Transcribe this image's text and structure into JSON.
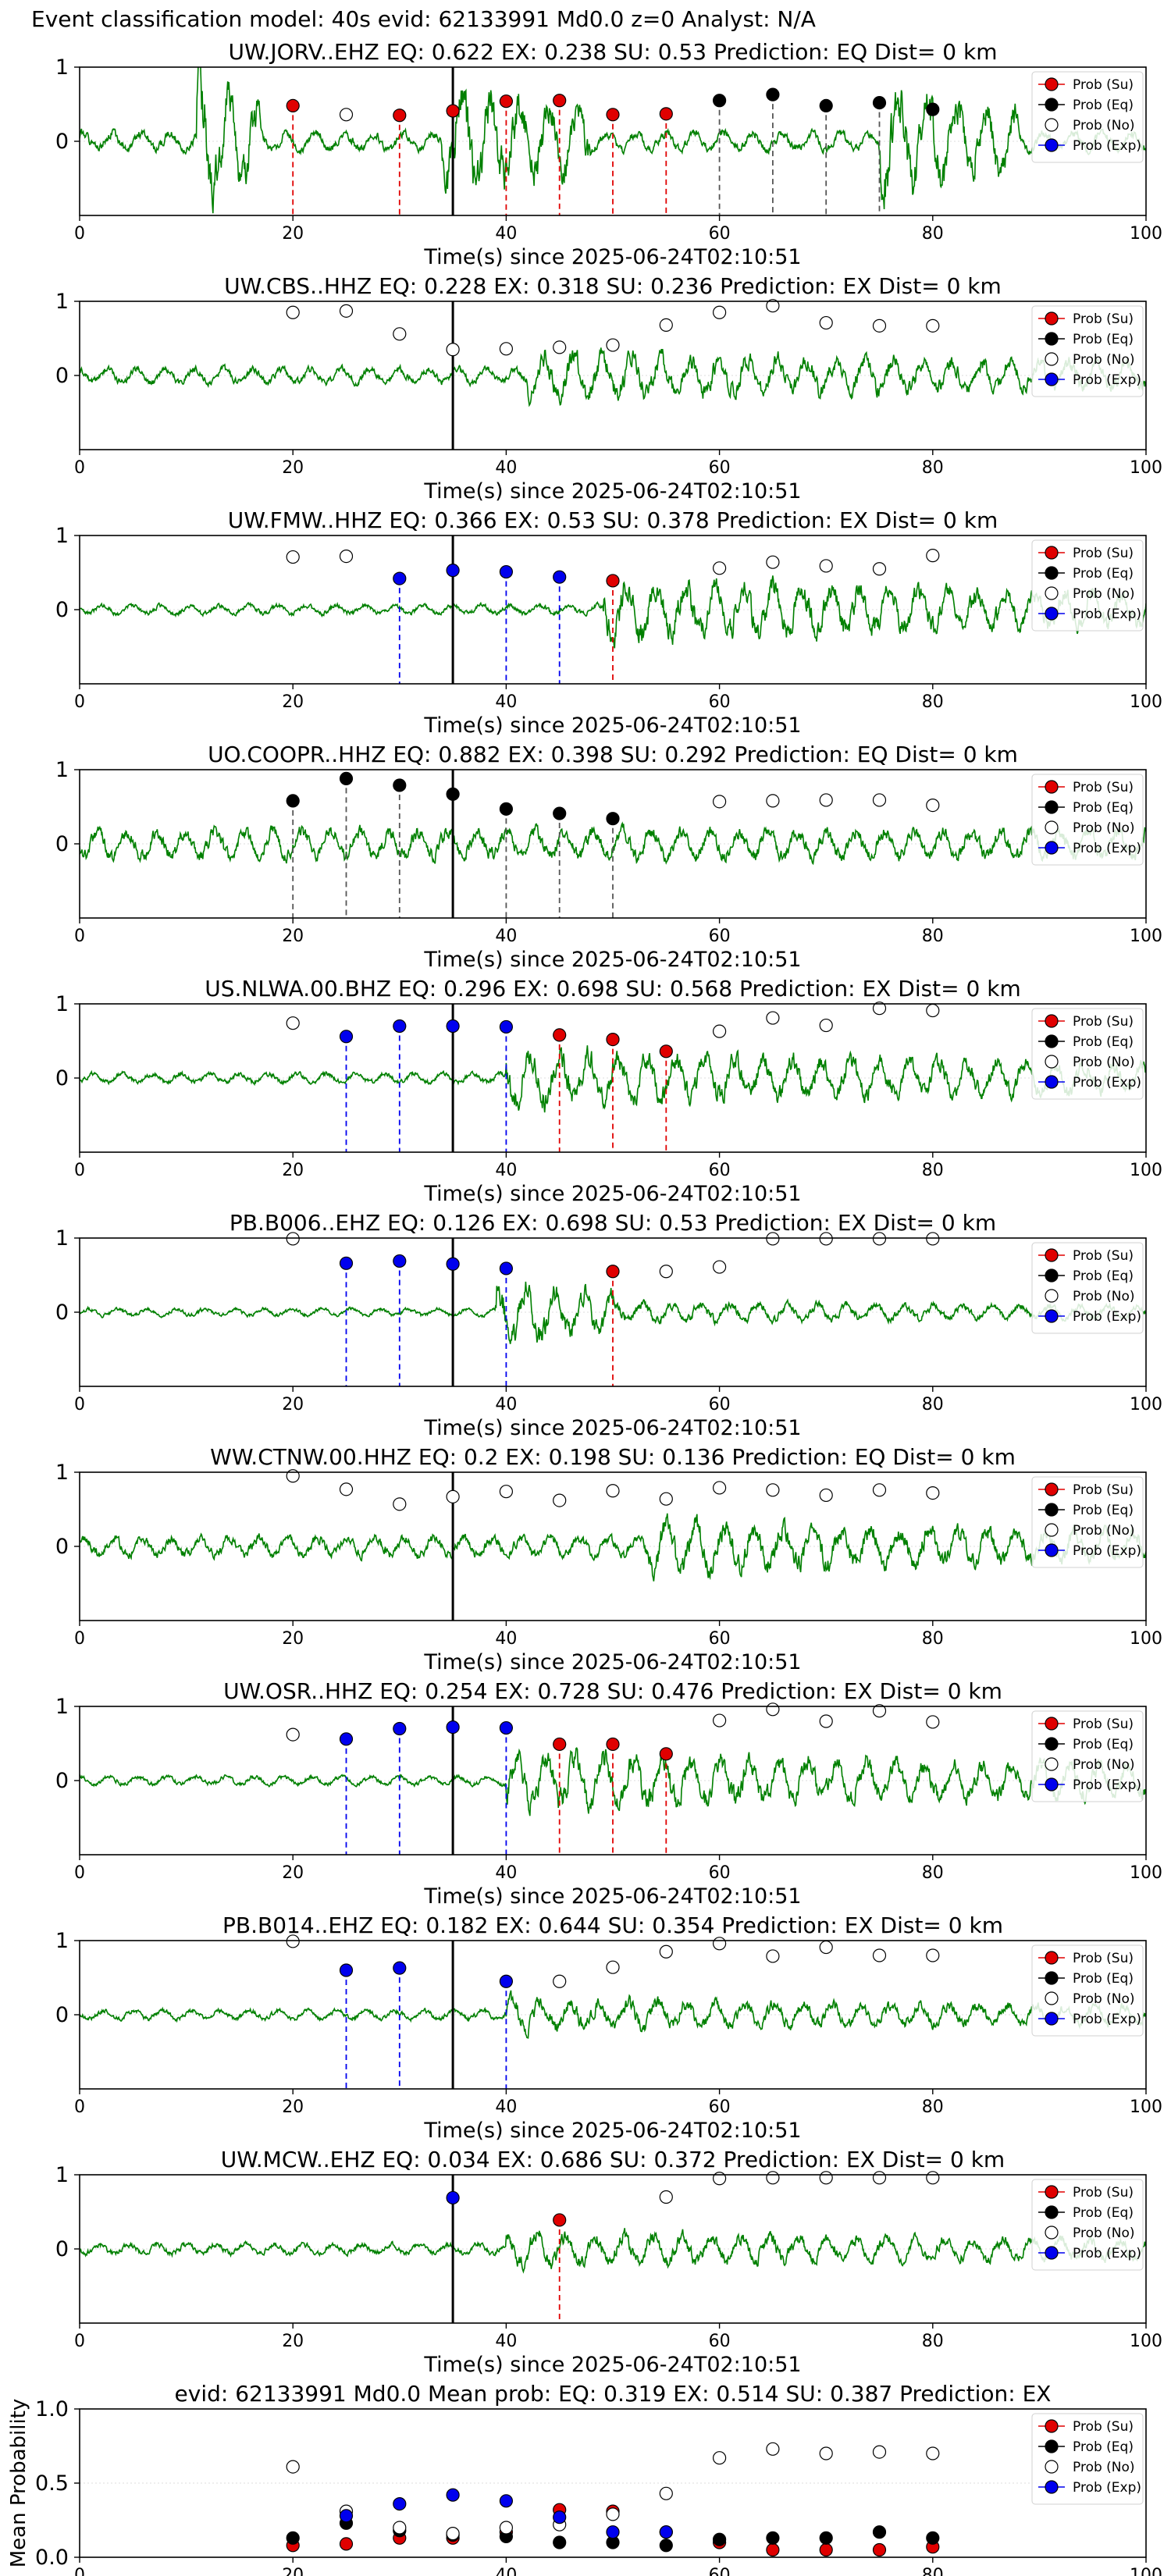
{
  "suptitle": "Event classification model: 40s evid: 62133991 Md0.0 z=0 Analyst: N/A",
  "legend": [
    "Prob (Su)",
    "Prob (Eq)",
    "Prob (No)",
    "Prob (Exp)"
  ],
  "colors": {
    "su": "#e00000",
    "eq": "#000000",
    "no": "#ffffff",
    "exp": "#0000ee",
    "trace": "#008000"
  },
  "xlabel": "Time(s) since 2025-06-24T02:10:51",
  "xticks": [
    "0",
    "20",
    "40",
    "60",
    "80",
    "100"
  ],
  "yticks": [
    "0",
    "1"
  ],
  "chart_data": [
    {
      "type": "line",
      "title": "UW.JORV..EHZ   EQ: 0.622  EX: 0.238  SU: 0.53   Prediction: EQ    Dist= 0 km",
      "seed": 1,
      "noise": 0.85,
      "bursts": [
        [
          11,
          17,
          6.0
        ],
        [
          34,
          48,
          5.0
        ],
        [
          75,
          88,
          5.0
        ]
      ],
      "xlim": [
        0,
        100
      ],
      "ylim": [
        -1,
        1
      ],
      "pick": 35,
      "vlines": [
        {
          "t": 20,
          "c": "su"
        },
        {
          "t": 30,
          "c": "su"
        },
        {
          "t": 35,
          "c": "su"
        },
        {
          "t": 40,
          "c": "su"
        },
        {
          "t": 45,
          "c": "su"
        },
        {
          "t": 50,
          "c": "su"
        },
        {
          "t": 55,
          "c": "su"
        },
        {
          "t": 60,
          "c": "eq"
        },
        {
          "t": 65,
          "c": "eq"
        },
        {
          "t": 70,
          "c": "eq"
        },
        {
          "t": 75,
          "c": "eq"
        }
      ],
      "points": [
        {
          "t": 20,
          "v": 0.48,
          "c": "su"
        },
        {
          "t": 25,
          "v": 0.36,
          "c": "no"
        },
        {
          "t": 30,
          "v": 0.35,
          "c": "su"
        },
        {
          "t": 35,
          "v": 0.41,
          "c": "su"
        },
        {
          "t": 40,
          "v": 0.54,
          "c": "su"
        },
        {
          "t": 45,
          "v": 0.55,
          "c": "su"
        },
        {
          "t": 50,
          "v": 0.36,
          "c": "su"
        },
        {
          "t": 55,
          "v": 0.37,
          "c": "su"
        },
        {
          "t": 60,
          "v": 0.55,
          "c": "eq"
        },
        {
          "t": 65,
          "v": 0.63,
          "c": "eq"
        },
        {
          "t": 70,
          "v": 0.48,
          "c": "eq"
        },
        {
          "t": 75,
          "v": 0.52,
          "c": "eq"
        },
        {
          "t": 80,
          "v": 0.43,
          "c": "eq"
        }
      ]
    },
    {
      "type": "line",
      "title": "UW.CBS..HHZ   EQ: 0.228  EX: 0.318  SU: 0.236   Prediction: EX    Dist= 0 km",
      "seed": 2,
      "noise": 0.7,
      "bursts": [
        [
          42,
          100,
          2.2
        ]
      ],
      "xlim": [
        0,
        100
      ],
      "ylim": [
        -1,
        1
      ],
      "pick": 35,
      "vlines": [],
      "points": [
        {
          "t": 20,
          "v": 0.85,
          "c": "no"
        },
        {
          "t": 25,
          "v": 0.87,
          "c": "no"
        },
        {
          "t": 30,
          "v": 0.56,
          "c": "no"
        },
        {
          "t": 35,
          "v": 0.35,
          "c": "no"
        },
        {
          "t": 40,
          "v": 0.36,
          "c": "no"
        },
        {
          "t": 45,
          "v": 0.38,
          "c": "no"
        },
        {
          "t": 50,
          "v": 0.41,
          "c": "no"
        },
        {
          "t": 55,
          "v": 0.68,
          "c": "no"
        },
        {
          "t": 60,
          "v": 0.85,
          "c": "no"
        },
        {
          "t": 65,
          "v": 0.94,
          "c": "no"
        },
        {
          "t": 70,
          "v": 0.71,
          "c": "no"
        },
        {
          "t": 75,
          "v": 0.67,
          "c": "no"
        },
        {
          "t": 80,
          "v": 0.67,
          "c": "no"
        }
      ]
    },
    {
      "type": "line",
      "title": "UW.FMW..HHZ   EQ: 0.366  EX: 0.53  SU: 0.378   Prediction: EX    Dist= 0 km",
      "seed": 3,
      "noise": 0.45,
      "bursts": [
        [
          49,
          100,
          2.8
        ]
      ],
      "xlim": [
        0,
        100
      ],
      "ylim": [
        -1,
        1
      ],
      "pick": 35,
      "vlines": [
        {
          "t": 30,
          "c": "exp"
        },
        {
          "t": 40,
          "c": "exp"
        },
        {
          "t": 45,
          "c": "exp"
        },
        {
          "t": 50,
          "c": "su"
        }
      ],
      "points": [
        {
          "t": 20,
          "v": 0.71,
          "c": "no"
        },
        {
          "t": 25,
          "v": 0.72,
          "c": "no"
        },
        {
          "t": 30,
          "v": 0.42,
          "c": "exp"
        },
        {
          "t": 35,
          "v": 0.53,
          "c": "exp"
        },
        {
          "t": 40,
          "v": 0.51,
          "c": "exp"
        },
        {
          "t": 45,
          "v": 0.44,
          "c": "exp"
        },
        {
          "t": 50,
          "v": 0.39,
          "c": "su"
        },
        {
          "t": 60,
          "v": 0.56,
          "c": "no"
        },
        {
          "t": 65,
          "v": 0.64,
          "c": "no"
        },
        {
          "t": 70,
          "v": 0.59,
          "c": "no"
        },
        {
          "t": 75,
          "v": 0.55,
          "c": "no"
        },
        {
          "t": 80,
          "v": 0.73,
          "c": "no"
        }
      ]
    },
    {
      "type": "line",
      "title": "UO.COOPR..HHZ   EQ: 0.882  EX: 0.398  SU: 0.292   Prediction: EQ    Dist= 0 km",
      "seed": 4,
      "noise": 1.3,
      "bursts": [
        [
          50,
          65,
          1.6
        ]
      ],
      "xlim": [
        0,
        100
      ],
      "ylim": [
        -1,
        1
      ],
      "pick": 35,
      "vlines": [
        {
          "t": 20,
          "c": "eq"
        },
        {
          "t": 25,
          "c": "eq"
        },
        {
          "t": 30,
          "c": "eq"
        },
        {
          "t": 40,
          "c": "eq"
        },
        {
          "t": 45,
          "c": "eq"
        },
        {
          "t": 50,
          "c": "eq"
        }
      ],
      "points": [
        {
          "t": 20,
          "v": 0.58,
          "c": "eq"
        },
        {
          "t": 25,
          "v": 0.88,
          "c": "eq"
        },
        {
          "t": 30,
          "v": 0.79,
          "c": "eq"
        },
        {
          "t": 35,
          "v": 0.67,
          "c": "eq"
        },
        {
          "t": 40,
          "v": 0.47,
          "c": "eq"
        },
        {
          "t": 45,
          "v": 0.41,
          "c": "eq"
        },
        {
          "t": 50,
          "v": 0.34,
          "c": "eq"
        },
        {
          "t": 60,
          "v": 0.57,
          "c": "no"
        },
        {
          "t": 65,
          "v": 0.58,
          "c": "no"
        },
        {
          "t": 70,
          "v": 0.59,
          "c": "no"
        },
        {
          "t": 75,
          "v": 0.59,
          "c": "no"
        },
        {
          "t": 80,
          "v": 0.52,
          "c": "no"
        }
      ]
    },
    {
      "type": "line",
      "title": "US.NLWA.00.BHZ   EQ: 0.296  EX: 0.698  SU: 0.568   Prediction: EX    Dist= 0 km",
      "seed": 5,
      "noise": 0.45,
      "bursts": [
        [
          40,
          100,
          2.5
        ]
      ],
      "xlim": [
        0,
        100
      ],
      "ylim": [
        -1,
        1
      ],
      "pick": 35,
      "vlines": [
        {
          "t": 25,
          "c": "exp"
        },
        {
          "t": 30,
          "c": "exp"
        },
        {
          "t": 40,
          "c": "exp"
        },
        {
          "t": 45,
          "c": "su"
        },
        {
          "t": 50,
          "c": "su"
        },
        {
          "t": 55,
          "c": "su"
        }
      ],
      "points": [
        {
          "t": 20,
          "v": 0.74,
          "c": "no"
        },
        {
          "t": 25,
          "v": 0.56,
          "c": "exp"
        },
        {
          "t": 30,
          "v": 0.7,
          "c": "exp"
        },
        {
          "t": 35,
          "v": 0.7,
          "c": "exp"
        },
        {
          "t": 40,
          "v": 0.69,
          "c": "exp"
        },
        {
          "t": 45,
          "v": 0.58,
          "c": "su"
        },
        {
          "t": 50,
          "v": 0.52,
          "c": "su"
        },
        {
          "t": 55,
          "v": 0.36,
          "c": "su"
        },
        {
          "t": 60,
          "v": 0.63,
          "c": "no"
        },
        {
          "t": 65,
          "v": 0.81,
          "c": "no"
        },
        {
          "t": 70,
          "v": 0.71,
          "c": "no"
        },
        {
          "t": 75,
          "v": 0.94,
          "c": "no"
        },
        {
          "t": 80,
          "v": 0.91,
          "c": "no"
        }
      ]
    },
    {
      "type": "line",
      "title": "PB.B006..EHZ   EQ: 0.126  EX: 0.698  SU: 0.53   Prediction: EX    Dist= 0 km",
      "seed": 6,
      "noise": 0.35,
      "bursts": [
        [
          39,
          50,
          3.2
        ],
        [
          50,
          100,
          1.0
        ]
      ],
      "xlim": [
        0,
        100
      ],
      "ylim": [
        -1,
        1
      ],
      "pick": 35,
      "vlines": [
        {
          "t": 25,
          "c": "exp"
        },
        {
          "t": 30,
          "c": "exp"
        },
        {
          "t": 40,
          "c": "exp"
        },
        {
          "t": 50,
          "c": "su"
        }
      ],
      "points": [
        {
          "t": 20,
          "v": 0.99,
          "c": "no"
        },
        {
          "t": 25,
          "v": 0.66,
          "c": "exp"
        },
        {
          "t": 30,
          "v": 0.69,
          "c": "exp"
        },
        {
          "t": 35,
          "v": 0.65,
          "c": "exp"
        },
        {
          "t": 40,
          "v": 0.59,
          "c": "exp"
        },
        {
          "t": 50,
          "v": 0.55,
          "c": "su"
        },
        {
          "t": 55,
          "v": 0.55,
          "c": "no"
        },
        {
          "t": 60,
          "v": 0.61,
          "c": "no"
        },
        {
          "t": 65,
          "v": 0.99,
          "c": "no"
        },
        {
          "t": 70,
          "v": 0.99,
          "c": "no"
        },
        {
          "t": 75,
          "v": 0.99,
          "c": "no"
        },
        {
          "t": 80,
          "v": 0.99,
          "c": "no"
        }
      ]
    },
    {
      "type": "line",
      "title": "WW.CTNW.00.HHZ   EQ: 0.2  EX: 0.198  SU: 0.136   Prediction: EQ    Dist= 0 km",
      "seed": 7,
      "noise": 0.9,
      "bursts": [
        [
          53,
          100,
          2.4
        ]
      ],
      "xlim": [
        0,
        100
      ],
      "ylim": [
        -1,
        1
      ],
      "pick": 35,
      "vlines": [],
      "points": [
        {
          "t": 20,
          "v": 0.95,
          "c": "no"
        },
        {
          "t": 25,
          "v": 0.77,
          "c": "no"
        },
        {
          "t": 30,
          "v": 0.57,
          "c": "no"
        },
        {
          "t": 35,
          "v": 0.67,
          "c": "no"
        },
        {
          "t": 40,
          "v": 0.74,
          "c": "no"
        },
        {
          "t": 45,
          "v": 0.62,
          "c": "no"
        },
        {
          "t": 50,
          "v": 0.75,
          "c": "no"
        },
        {
          "t": 55,
          "v": 0.64,
          "c": "no"
        },
        {
          "t": 60,
          "v": 0.79,
          "c": "no"
        },
        {
          "t": 65,
          "v": 0.76,
          "c": "no"
        },
        {
          "t": 70,
          "v": 0.69,
          "c": "no"
        },
        {
          "t": 75,
          "v": 0.76,
          "c": "no"
        },
        {
          "t": 80,
          "v": 0.72,
          "c": "no"
        }
      ]
    },
    {
      "type": "line",
      "title": "UW.OSR..HHZ   EQ: 0.254  EX: 0.728  SU: 0.476   Prediction: EX    Dist= 0 km",
      "seed": 8,
      "noise": 0.4,
      "bursts": [
        [
          40,
          100,
          2.6
        ]
      ],
      "xlim": [
        0,
        100
      ],
      "ylim": [
        -1,
        1
      ],
      "pick": 35,
      "vlines": [
        {
          "t": 25,
          "c": "exp"
        },
        {
          "t": 30,
          "c": "exp"
        },
        {
          "t": 40,
          "c": "exp"
        },
        {
          "t": 45,
          "c": "su"
        },
        {
          "t": 50,
          "c": "su"
        },
        {
          "t": 55,
          "c": "su"
        }
      ],
      "points": [
        {
          "t": 20,
          "v": 0.62,
          "c": "no"
        },
        {
          "t": 25,
          "v": 0.56,
          "c": "exp"
        },
        {
          "t": 30,
          "v": 0.7,
          "c": "exp"
        },
        {
          "t": 35,
          "v": 0.72,
          "c": "exp"
        },
        {
          "t": 40,
          "v": 0.71,
          "c": "exp"
        },
        {
          "t": 45,
          "v": 0.49,
          "c": "su"
        },
        {
          "t": 50,
          "v": 0.49,
          "c": "su"
        },
        {
          "t": 55,
          "v": 0.36,
          "c": "su"
        },
        {
          "t": 60,
          "v": 0.81,
          "c": "no"
        },
        {
          "t": 65,
          "v": 0.96,
          "c": "no"
        },
        {
          "t": 70,
          "v": 0.8,
          "c": "no"
        },
        {
          "t": 75,
          "v": 0.94,
          "c": "no"
        },
        {
          "t": 80,
          "v": 0.79,
          "c": "no"
        }
      ]
    },
    {
      "type": "line",
      "title": "PB.B014..EHZ   EQ: 0.182  EX: 0.644  SU: 0.354   Prediction: EX    Dist= 0 km",
      "seed": 9,
      "noise": 0.45,
      "bursts": [
        [
          40,
          100,
          1.5
        ]
      ],
      "xlim": [
        0,
        100
      ],
      "ylim": [
        -1,
        1
      ],
      "pick": 35,
      "vlines": [
        {
          "t": 25,
          "c": "exp"
        },
        {
          "t": 30,
          "c": "exp"
        },
        {
          "t": 40,
          "c": "exp"
        }
      ],
      "points": [
        {
          "t": 20,
          "v": 0.99,
          "c": "no"
        },
        {
          "t": 25,
          "v": 0.6,
          "c": "exp"
        },
        {
          "t": 30,
          "v": 0.63,
          "c": "exp"
        },
        {
          "t": 40,
          "v": 0.45,
          "c": "exp"
        },
        {
          "t": 45,
          "v": 0.45,
          "c": "no"
        },
        {
          "t": 50,
          "v": 0.64,
          "c": "no"
        },
        {
          "t": 55,
          "v": 0.85,
          "c": "no"
        },
        {
          "t": 60,
          "v": 0.96,
          "c": "no"
        },
        {
          "t": 65,
          "v": 0.79,
          "c": "no"
        },
        {
          "t": 70,
          "v": 0.91,
          "c": "no"
        },
        {
          "t": 75,
          "v": 0.8,
          "c": "no"
        },
        {
          "t": 80,
          "v": 0.8,
          "c": "no"
        }
      ]
    },
    {
      "type": "line",
      "title": "UW.MCW..EHZ   EQ: 0.034  EX: 0.686  SU: 0.372   Prediction: EX    Dist= 0 km",
      "seed": 10,
      "noise": 0.5,
      "bursts": [
        [
          40,
          100,
          1.6
        ]
      ],
      "xlim": [
        0,
        100
      ],
      "ylim": [
        -1,
        1
      ],
      "pick": 35,
      "vlines": [
        {
          "t": 45,
          "c": "su"
        }
      ],
      "points": [
        {
          "t": 35,
          "v": 0.69,
          "c": "exp"
        },
        {
          "t": 45,
          "v": 0.39,
          "c": "su"
        },
        {
          "t": 55,
          "v": 0.7,
          "c": "no"
        },
        {
          "t": 60,
          "v": 0.95,
          "c": "no"
        },
        {
          "t": 65,
          "v": 0.96,
          "c": "no"
        },
        {
          "t": 70,
          "v": 0.96,
          "c": "no"
        },
        {
          "t": 75,
          "v": 0.96,
          "c": "no"
        },
        {
          "t": 80,
          "v": 0.96,
          "c": "no"
        }
      ]
    },
    {
      "type": "scatter",
      "title": "evid: 62133991   Md0.0   Mean prob:   EQ: 0.319  EX: 0.514  SU: 0.387   Prediction: EX",
      "ylabel": "Mean Probability",
      "yticks": [
        "0.0",
        "0.5",
        "1.0"
      ],
      "xlim": [
        0,
        100
      ],
      "ylim": [
        0,
        1
      ],
      "series": [
        {
          "name": "Prob (Su)",
          "c": "su",
          "x": [
            20,
            25,
            30,
            35,
            40,
            45,
            50,
            55,
            60,
            65,
            70,
            75,
            80
          ],
          "y": [
            0.08,
            0.09,
            0.13,
            0.13,
            0.17,
            0.32,
            0.31,
            0.17,
            0.1,
            0.05,
            0.05,
            0.05,
            0.07
          ]
        },
        {
          "name": "Prob (Eq)",
          "c": "eq",
          "x": [
            20,
            25,
            30,
            35,
            40,
            45,
            50,
            55,
            60,
            65,
            70,
            75,
            80
          ],
          "y": [
            0.13,
            0.23,
            0.18,
            0.15,
            0.14,
            0.1,
            0.1,
            0.08,
            0.12,
            0.13,
            0.13,
            0.17,
            0.13
          ]
        },
        {
          "name": "Prob (No)",
          "c": "no",
          "x": [
            20,
            25,
            30,
            35,
            40,
            45,
            50,
            55,
            60,
            65,
            70,
            75,
            80
          ],
          "y": [
            0.61,
            0.31,
            0.2,
            0.16,
            0.2,
            0.22,
            0.29,
            0.43,
            0.67,
            0.73,
            0.7,
            0.71,
            0.7
          ]
        },
        {
          "name": "Prob (Exp)",
          "c": "exp",
          "x": [
            25,
            30,
            35,
            40,
            45,
            50,
            55
          ],
          "y": [
            0.28,
            0.36,
            0.42,
            0.38,
            0.27,
            0.17,
            0.17
          ]
        }
      ]
    }
  ]
}
